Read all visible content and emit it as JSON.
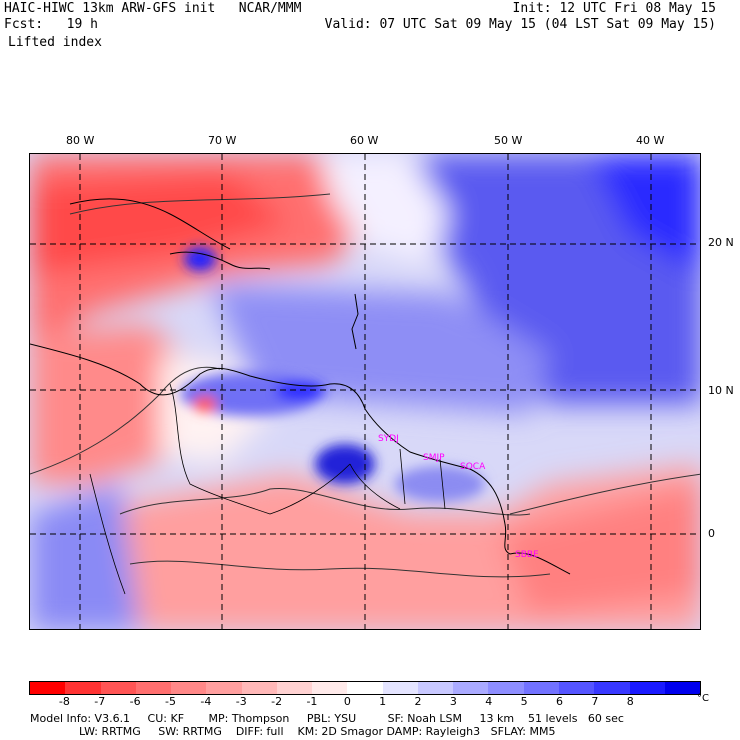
{
  "header": {
    "model_line": "HAIC-HIWC 13km ARW-GFS init   NCAR/MMM",
    "fcst_line": "Fcst:   19 h",
    "field_name": "Lifted index",
    "init_line": "Init: 12 UTC Fri 08 May 15",
    "valid_line": "Valid: 07 UTC Sat 09 May 15 (04 LST Sat 09 May 15)"
  },
  "map": {
    "longitude_labels": [
      "80 W",
      "70 W",
      "60 W",
      "50 W",
      "40 W"
    ],
    "latitude_labels": [
      "20 N",
      "10 N",
      "0"
    ],
    "place_labels": [
      "SYDJ",
      "SMJP",
      "SOCA",
      "SBBE"
    ]
  },
  "colorbar": {
    "labels": [
      "-8",
      "-7",
      "-6",
      "-5",
      "-4",
      "-3",
      "-2",
      "-1",
      "0",
      "1",
      "2",
      "3",
      "4",
      "5",
      "6",
      "7",
      "8"
    ],
    "unit": "°C",
    "colors": [
      "#ff0000",
      "#ff3333",
      "#ff5555",
      "#ff6f6f",
      "#ff8888",
      "#ff9f9f",
      "#ffb8b8",
      "#ffd2d2",
      "#ffeaea",
      "#ffffff",
      "#e4e4ff",
      "#c8c8ff",
      "#aaaaff",
      "#8e8eff",
      "#7272ff",
      "#5555ff",
      "#3838ff",
      "#1a1aff",
      "#0000ee"
    ]
  },
  "footer": {
    "line1": "Model Info: V3.6.1     CU: KF       MP: Thompson     PBL: YSU         SF: Noah LSM     13 km    51 levels   60 sec",
    "line2": "              LW: RRTMG     SW: RRTMG    DIFF: full    KM: 2D Smagor DAMP: Rayleigh3   SFLAY: MM5"
  }
}
